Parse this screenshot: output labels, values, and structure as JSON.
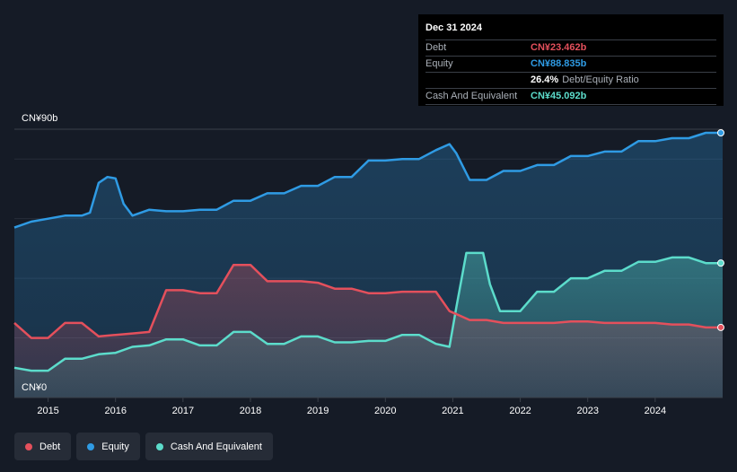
{
  "tooltip": {
    "date": "Dec 31 2024",
    "rows": [
      {
        "label": "Debt",
        "value": "CN¥23.462b",
        "color": "#e4505c"
      },
      {
        "label": "Equity",
        "value": "CN¥88.835b",
        "color": "#2f9be4"
      }
    ],
    "ratio_value": "26.4%",
    "ratio_label": "Debt/Equity Ratio",
    "cash_label": "Cash And Equivalent",
    "cash_value": "CN¥45.092b",
    "cash_color": "#5cdccb"
  },
  "legend": [
    {
      "label": "Debt",
      "color": "#e4505c"
    },
    {
      "label": "Equity",
      "color": "#2f9be4"
    },
    {
      "label": "Cash And Equivalent",
      "color": "#5cdccb"
    }
  ],
  "chart_data": {
    "type": "area",
    "y_axis_top_label": "CN¥90b",
    "y_axis_bottom_label": "CN¥0",
    "ylim": [
      0,
      90
    ],
    "xlim": [
      2014.5,
      2025.0
    ],
    "x_tick_labels": [
      "2015",
      "2016",
      "2017",
      "2018",
      "2019",
      "2020",
      "2021",
      "2022",
      "2023",
      "2024"
    ],
    "x_ticks": [
      2015,
      2016,
      2017,
      2018,
      2019,
      2020,
      2021,
      2022,
      2023,
      2024
    ],
    "grid": "horizontal",
    "series": [
      {
        "name": "Equity",
        "color": "#2f9be4",
        "points": [
          [
            2014.5,
            57
          ],
          [
            2014.75,
            59
          ],
          [
            2015.0,
            60
          ],
          [
            2015.25,
            61
          ],
          [
            2015.5,
            61
          ],
          [
            2015.62,
            62
          ],
          [
            2015.75,
            72
          ],
          [
            2015.88,
            74
          ],
          [
            2016.0,
            73.5
          ],
          [
            2016.12,
            65
          ],
          [
            2016.25,
            61
          ],
          [
            2016.5,
            63
          ],
          [
            2016.75,
            62.5
          ],
          [
            2017.0,
            62.5
          ],
          [
            2017.25,
            63
          ],
          [
            2017.5,
            63
          ],
          [
            2017.75,
            66
          ],
          [
            2018.0,
            66
          ],
          [
            2018.25,
            68.5
          ],
          [
            2018.5,
            68.5
          ],
          [
            2018.75,
            71
          ],
          [
            2019.0,
            71
          ],
          [
            2019.25,
            74
          ],
          [
            2019.5,
            74
          ],
          [
            2019.75,
            79.5
          ],
          [
            2020.0,
            79.5
          ],
          [
            2020.25,
            80
          ],
          [
            2020.5,
            80
          ],
          [
            2020.75,
            83
          ],
          [
            2020.95,
            85
          ],
          [
            2021.05,
            82
          ],
          [
            2021.25,
            73
          ],
          [
            2021.5,
            73
          ],
          [
            2021.75,
            76
          ],
          [
            2022.0,
            76
          ],
          [
            2022.25,
            78
          ],
          [
            2022.5,
            78
          ],
          [
            2022.75,
            81
          ],
          [
            2023.0,
            81
          ],
          [
            2023.25,
            82.5
          ],
          [
            2023.5,
            82.5
          ],
          [
            2023.75,
            86
          ],
          [
            2024.0,
            86
          ],
          [
            2024.25,
            87
          ],
          [
            2024.5,
            87
          ],
          [
            2024.75,
            88.8
          ],
          [
            2025.0,
            88.8
          ]
        ]
      },
      {
        "name": "Cash And Equivalent",
        "color": "#5cdccb",
        "points": [
          [
            2014.5,
            10
          ],
          [
            2014.75,
            9
          ],
          [
            2015.0,
            9
          ],
          [
            2015.25,
            13
          ],
          [
            2015.5,
            13
          ],
          [
            2015.75,
            14.5
          ],
          [
            2016.0,
            15
          ],
          [
            2016.25,
            17
          ],
          [
            2016.5,
            17.5
          ],
          [
            2016.75,
            19.5
          ],
          [
            2017.0,
            19.5
          ],
          [
            2017.25,
            17.5
          ],
          [
            2017.5,
            17.5
          ],
          [
            2017.75,
            22
          ],
          [
            2018.0,
            22
          ],
          [
            2018.25,
            18
          ],
          [
            2018.5,
            18
          ],
          [
            2018.75,
            20.5
          ],
          [
            2019.0,
            20.5
          ],
          [
            2019.25,
            18.5
          ],
          [
            2019.5,
            18.5
          ],
          [
            2019.75,
            19
          ],
          [
            2020.0,
            19
          ],
          [
            2020.25,
            21
          ],
          [
            2020.5,
            21
          ],
          [
            2020.75,
            18
          ],
          [
            2020.95,
            17
          ],
          [
            2021.05,
            30
          ],
          [
            2021.2,
            48.5
          ],
          [
            2021.45,
            48.5
          ],
          [
            2021.55,
            38
          ],
          [
            2021.7,
            29
          ],
          [
            2022.0,
            29
          ],
          [
            2022.25,
            35.5
          ],
          [
            2022.5,
            35.5
          ],
          [
            2022.75,
            40
          ],
          [
            2023.0,
            40
          ],
          [
            2023.25,
            42.5
          ],
          [
            2023.5,
            42.5
          ],
          [
            2023.75,
            45.5
          ],
          [
            2024.0,
            45.5
          ],
          [
            2024.25,
            47
          ],
          [
            2024.5,
            47
          ],
          [
            2024.75,
            45.1
          ],
          [
            2025.0,
            45.1
          ]
        ]
      },
      {
        "name": "Debt",
        "color": "#e4505c",
        "points": [
          [
            2014.5,
            25
          ],
          [
            2014.75,
            20
          ],
          [
            2015.0,
            20
          ],
          [
            2015.25,
            25
          ],
          [
            2015.5,
            25
          ],
          [
            2015.75,
            20.5
          ],
          [
            2016.0,
            21
          ],
          [
            2016.25,
            21.5
          ],
          [
            2016.5,
            22
          ],
          [
            2016.75,
            36
          ],
          [
            2017.0,
            36
          ],
          [
            2017.25,
            35
          ],
          [
            2017.5,
            35
          ],
          [
            2017.75,
            44.5
          ],
          [
            2018.0,
            44.5
          ],
          [
            2018.25,
            39
          ],
          [
            2018.5,
            39
          ],
          [
            2018.75,
            39
          ],
          [
            2019.0,
            38.5
          ],
          [
            2019.25,
            36.5
          ],
          [
            2019.5,
            36.5
          ],
          [
            2019.75,
            35
          ],
          [
            2020.0,
            35
          ],
          [
            2020.25,
            35.5
          ],
          [
            2020.5,
            35.5
          ],
          [
            2020.75,
            35.5
          ],
          [
            2020.95,
            29
          ],
          [
            2021.25,
            26
          ],
          [
            2021.5,
            26
          ],
          [
            2021.75,
            25
          ],
          [
            2022.0,
            25
          ],
          [
            2022.25,
            25
          ],
          [
            2022.5,
            25
          ],
          [
            2022.75,
            25.5
          ],
          [
            2023.0,
            25.5
          ],
          [
            2023.25,
            25
          ],
          [
            2023.5,
            25
          ],
          [
            2023.75,
            25
          ],
          [
            2024.0,
            25
          ],
          [
            2024.25,
            24.5
          ],
          [
            2024.5,
            24.5
          ],
          [
            2024.75,
            23.5
          ],
          [
            2025.0,
            23.5
          ]
        ]
      }
    ]
  }
}
